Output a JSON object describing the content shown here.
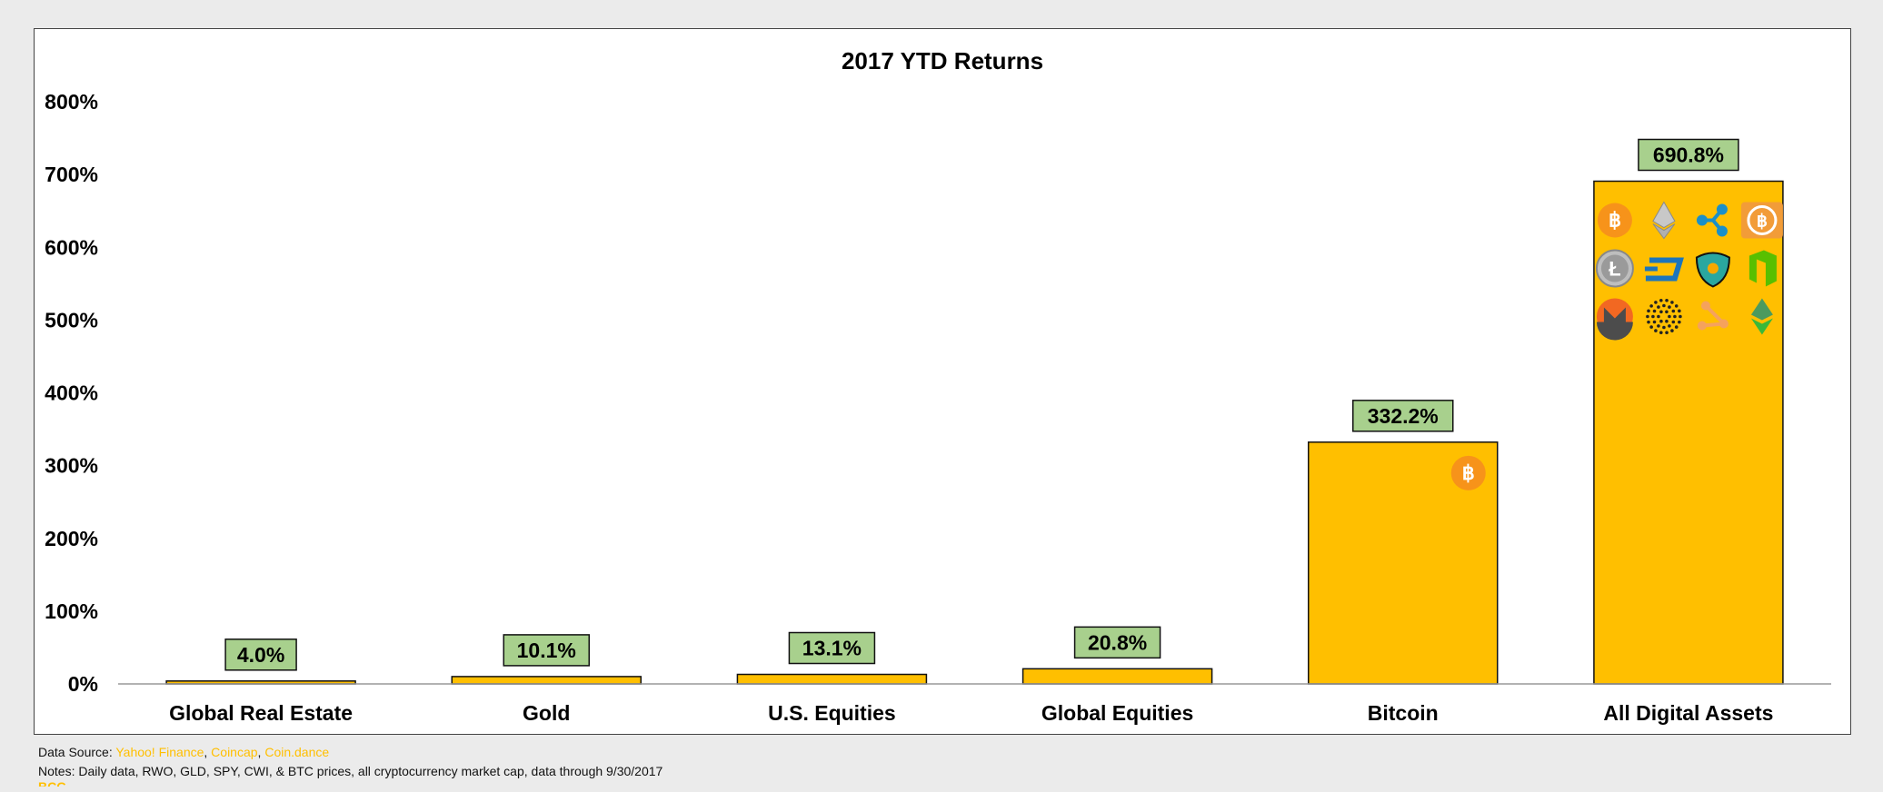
{
  "colors": {
    "bar": "#ffbf00",
    "label_box": "#a8d08d",
    "axis": "#999999",
    "bitcoin": "#f7931a"
  },
  "chart_data": {
    "type": "bar",
    "title": "2017 YTD Returns",
    "xlabel": "",
    "ylabel": "",
    "categories": [
      "Global Real Estate",
      "Gold",
      "U.S. Equities",
      "Global Equities",
      "Bitcoin",
      "All Digital Assets"
    ],
    "values": [
      4.0,
      10.1,
      13.1,
      20.8,
      332.2,
      690.8
    ],
    "data_labels": [
      "4.0%",
      "10.1%",
      "13.1%",
      "20.8%",
      "332.2%",
      "690.8%"
    ],
    "ylim": [
      0,
      800
    ],
    "yticks": [
      0,
      100,
      200,
      300,
      400,
      500,
      600,
      700,
      800
    ],
    "ytick_labels": [
      "0%",
      "100%",
      "200%",
      "300%",
      "400%",
      "500%",
      "600%",
      "700%",
      "800%"
    ],
    "grid": false,
    "legend": "none",
    "icons": {
      "Bitcoin": [
        "bitcoin-icon"
      ],
      "All Digital Assets": [
        "bitcoin-icon",
        "ethereum-icon",
        "ripple-icon",
        "bitcoin-cash-icon",
        "litecoin-icon",
        "dash-icon",
        "nem-icon",
        "neo-icon",
        "monero-icon",
        "iota-icon",
        "omisego-icon",
        "ethereum-classic-icon"
      ]
    }
  },
  "footer": {
    "source_prefix": "Data Source: ",
    "source_yahoo": "Yahoo! Finance",
    "source_coincap": "Coincap",
    "source_coindance": "Coin.dance",
    "sep1": ", ",
    "sep2": ", ",
    "notes": "Notes: Daily data, RWO, GLD, SPY, CWI, & BTC prices, all cryptocurrency market cap, data through 9/30/2017",
    "truncated_line": "BCG  ..."
  }
}
